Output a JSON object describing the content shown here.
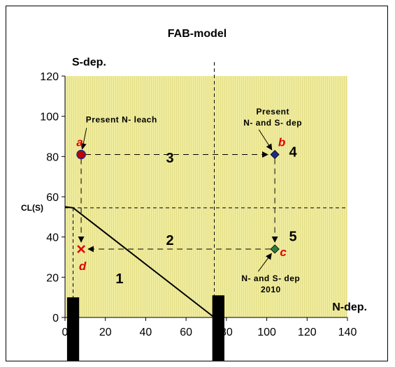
{
  "chart_data": {
    "type": "scatter",
    "title": "FAB-model",
    "ylabel": "S-dep.",
    "xlabel": "N-dep.",
    "xlim": [
      0,
      140
    ],
    "ylim": [
      0,
      120
    ],
    "x_ticks": [
      0,
      20,
      40,
      60,
      80,
      100,
      120,
      140
    ],
    "y_ticks": [
      0,
      20,
      40,
      60,
      80,
      100,
      120
    ],
    "x_tick_labels": [
      "0",
      "20",
      "40",
      "60",
      "80",
      "100",
      "120",
      "140"
    ],
    "y_tick_labels": [
      "0",
      "20",
      "40",
      "60",
      "80",
      "100",
      "120"
    ],
    "grid": false,
    "plot_background": "#f0eda0",
    "critical_load_function": {
      "points": [
        [
          0,
          55
        ],
        [
          4,
          54.5
        ],
        [
          74,
          0
        ]
      ],
      "cl_s_label": "CL(S)",
      "cl_s_value": 54.5,
      "n_vertical_x": 74
    },
    "points": [
      {
        "label": "a",
        "x": 8,
        "y": 81,
        "marker": "circle",
        "color": "#c00000"
      },
      {
        "label": "b",
        "x": 104,
        "y": 81,
        "marker": "diamond",
        "color": "#1f2a8c"
      },
      {
        "label": "c",
        "x": 104,
        "y": 34,
        "marker": "diamond",
        "color": "#2e7d3a"
      },
      {
        "label": "d",
        "x": 8,
        "y": 34,
        "marker": "x",
        "color": "#e00000"
      }
    ],
    "paths": [
      {
        "from": "a",
        "to": "b",
        "label": "3",
        "label_x": 52,
        "label_y": 77
      },
      {
        "from": "b",
        "to": "c",
        "label": "",
        "label_x": null,
        "label_y": null
      },
      {
        "from": "c",
        "to": "d",
        "label": "2",
        "label_x": 52,
        "label_y": 36
      },
      {
        "from": "a",
        "to": "d",
        "label": "",
        "label_x": null,
        "label_y": null
      }
    ],
    "region_labels": [
      {
        "text": "1",
        "x": 27,
        "y": 17
      },
      {
        "text": "4",
        "x": 113,
        "y": 80
      },
      {
        "text": "5",
        "x": 113,
        "y": 38
      }
    ],
    "annotations": [
      {
        "lines": [
          "Present N- leach"
        ],
        "x": 28,
        "y": 97,
        "target": "a"
      },
      {
        "lines": [
          "Present",
          "N- and S- dep"
        ],
        "x": 103,
        "y": 101,
        "target": "b"
      },
      {
        "lines": [
          "N- and S- dep",
          "2010"
        ],
        "x": 102,
        "y": 18,
        "target": "c"
      }
    ],
    "black_bars": [
      {
        "x0": 1,
        "x1": 7,
        "y_top": 10
      },
      {
        "x0": 73,
        "x1": 79,
        "y_top": 11
      }
    ]
  }
}
